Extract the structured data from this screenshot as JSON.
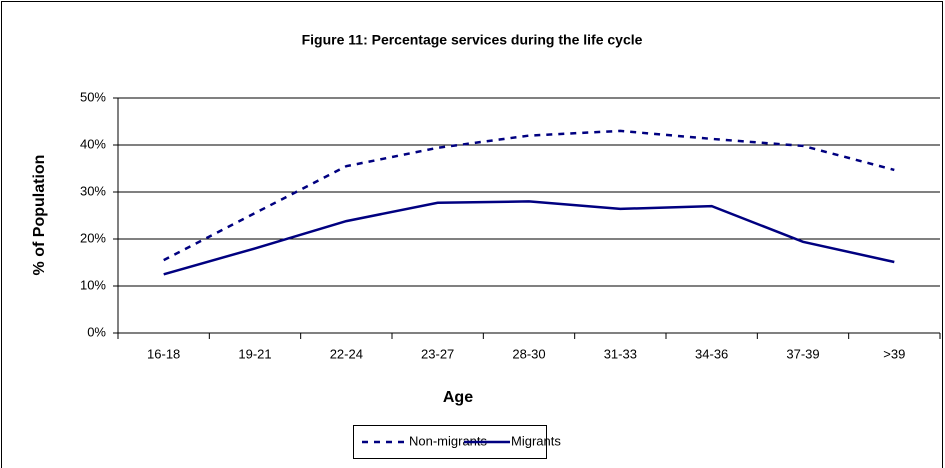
{
  "chart_data": {
    "type": "line",
    "title": "Figure 11: Percentage services during the life cycle",
    "x_label": "Age",
    "y_label": "% of Population",
    "categories": [
      "16-18",
      "19-21",
      "22-24",
      "23-27",
      "28-30",
      "31-33",
      "34-36",
      "37-39",
      ">39"
    ],
    "series": [
      {
        "name": "Non-migrants",
        "color": "#000080",
        "dashed": true,
        "values": [
          15.5,
          25.5,
          35.5,
          39.4,
          42,
          43,
          41.3,
          39.8,
          34.7
        ]
      },
      {
        "name": "Migrants",
        "color": "#000080",
        "dashed": false,
        "values": [
          12.5,
          18,
          23.8,
          27.7,
          28,
          26.4,
          27,
          19.4,
          15.1
        ]
      }
    ],
    "ylim": [
      0,
      50
    ],
    "yticks": [
      {
        "value": 0,
        "label": "0%"
      },
      {
        "value": 10,
        "label": "10%"
      },
      {
        "value": 20,
        "label": "20%"
      },
      {
        "value": 30,
        "label": "30%"
      },
      {
        "value": 40,
        "label": "40%"
      },
      {
        "value": 50,
        "label": "50%"
      }
    ],
    "grid": true,
    "legend": "bottom"
  }
}
